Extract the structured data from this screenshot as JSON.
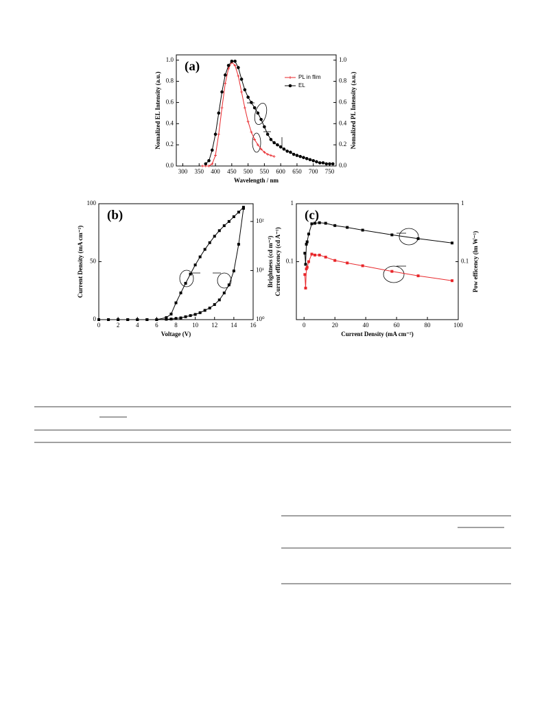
{
  "chart_data": [
    {
      "type": "line",
      "title": "(a)",
      "xlabel": "Wavelength / nm",
      "ylabel": "Nomalized EL Intensity (a.u.)",
      "y2label": "Nomalized PL Intensity (a.u.)",
      "xlim": [
        280,
        770
      ],
      "xticks": [
        300,
        350,
        400,
        450,
        500,
        550,
        600,
        650,
        700,
        750
      ],
      "ylim": [
        0,
        1.05
      ],
      "yticks": [
        {
          "value": 0,
          "label": "0.0"
        },
        0.2,
        0.4,
        0.6,
        0.8,
        {
          "value": 1,
          "label": "1.0"
        }
      ],
      "y2lim": [
        0,
        1.05
      ],
      "y2ticks": [
        {
          "value": 0,
          "label": "0.0"
        },
        0.2,
        0.4,
        0.6,
        0.8,
        {
          "value": 1,
          "label": "1.0"
        }
      ],
      "legend": "upper right",
      "series": [
        {
          "name": "PL in flim",
          "color": "#e8262a",
          "marker": "plus",
          "axis": "y2",
          "x": [
            360,
            370,
            380,
            390,
            400,
            410,
            420,
            430,
            440,
            450,
            460,
            470,
            480,
            490,
            500,
            510,
            520,
            530,
            540,
            550,
            560,
            570,
            580
          ],
          "values": [
            0,
            0,
            0,
            0.02,
            0.1,
            0.3,
            0.55,
            0.78,
            0.92,
            0.98,
            0.95,
            0.85,
            0.7,
            0.55,
            0.42,
            0.32,
            0.25,
            0.2,
            0.16,
            0.13,
            0.11,
            0.1,
            0.09
          ]
        },
        {
          "name": "EL",
          "color": "#000000",
          "marker": "circle",
          "x": [
            370,
            380,
            390,
            400,
            410,
            420,
            430,
            440,
            450,
            460,
            470,
            480,
            490,
            500,
            510,
            520,
            530,
            540,
            550,
            560,
            570,
            580,
            590,
            600,
            610,
            620,
            630,
            640,
            650,
            660,
            670,
            680,
            690,
            700,
            710,
            720,
            730,
            740,
            750,
            760
          ],
          "values": [
            0.02,
            0.05,
            0.15,
            0.3,
            0.5,
            0.7,
            0.86,
            0.95,
            0.99,
            0.99,
            0.93,
            0.82,
            0.72,
            0.65,
            0.6,
            0.55,
            0.5,
            0.44,
            0.37,
            0.3,
            0.25,
            0.22,
            0.2,
            0.18,
            0.16,
            0.14,
            0.13,
            0.11,
            0.1,
            0.09,
            0.08,
            0.07,
            0.06,
            0.05,
            0.04,
            0.03,
            0.03,
            0.02,
            0.02,
            0.02
          ]
        }
      ]
    },
    {
      "type": "line",
      "title": "(b)",
      "xlabel": "Voltage (V)",
      "ylabel": "Current Density (mA cm⁻²)",
      "y2label": "Brightness (cd m⁻²)",
      "xlim": [
        0,
        16
      ],
      "xticks": [
        0,
        2,
        4,
        6,
        8,
        10,
        12,
        14,
        16
      ],
      "ylim": [
        0,
        100
      ],
      "yticks": [
        0,
        50,
        100
      ],
      "y2lim": [
        1,
        230
      ],
      "y2log": true,
      "y2ticks": [
        {
          "value": 1,
          "label": "10⁰"
        },
        {
          "value": 10,
          "label": "10¹"
        },
        {
          "value": 100,
          "label": "10²"
        }
      ],
      "series": [
        {
          "color": "#000000",
          "marker": "square",
          "x": [
            0,
            1,
            2,
            3,
            4,
            5,
            6,
            7,
            7.5,
            8,
            8.5,
            9,
            9.5,
            10,
            10.5,
            11,
            11.5,
            12,
            12.5,
            13,
            13.5,
            14,
            14.5,
            15
          ],
          "values": [
            0,
            0,
            0,
            0,
            0,
            0,
            0,
            0.3,
            0.5,
            1,
            1.5,
            2.5,
            3.5,
            4.5,
            6,
            8,
            10,
            13,
            17,
            23,
            30,
            42,
            65,
            96
          ]
        },
        {
          "color": "#000000",
          "marker": "square",
          "axis": "y2",
          "x": [
            0,
            1,
            2,
            3,
            4,
            5,
            6,
            7,
            7.5,
            8,
            8.5,
            9,
            9.5,
            10,
            10.5,
            11,
            11.5,
            12,
            12.5,
            13,
            13.5,
            14,
            14.5,
            15
          ],
          "values": [
            1,
            1,
            1,
            1,
            1,
            1,
            1,
            1.1,
            1.3,
            2.2,
            3.5,
            5.5,
            8.5,
            13,
            19,
            27,
            37,
            50,
            65,
            82,
            100,
            125,
            155,
            195
          ]
        }
      ]
    },
    {
      "type": "line",
      "title": "(c)",
      "xlabel": "Current Density (mA cm⁻²)",
      "ylabel": "Current efficency (cd A⁻¹)",
      "y2label": "Pow efficency (lm W⁻¹)",
      "xlim": [
        -5,
        100
      ],
      "xticks": [
        0,
        20,
        40,
        60,
        80,
        100
      ],
      "ylim": [
        0.01,
        1
      ],
      "ylog": true,
      "yticks": [
        0.1,
        1
      ],
      "y2lim": [
        0.01,
        1
      ],
      "y2log": true,
      "y2ticks": [
        0.1,
        1
      ],
      "series": [
        {
          "color": "#000000",
          "marker": "square",
          "x": [
            0.5,
            1,
            1.5,
            2,
            3,
            5,
            7,
            10,
            14,
            20,
            28,
            38,
            57,
            74,
            96
          ],
          "values": [
            0.14,
            0.09,
            0.2,
            0.22,
            0.3,
            0.45,
            0.46,
            0.47,
            0.46,
            0.42,
            0.39,
            0.35,
            0.29,
            0.25,
            0.21
          ]
        },
        {
          "color": "#e8262a",
          "marker": "square",
          "axis": "y2",
          "x": [
            0.5,
            1,
            1.5,
            2,
            3,
            5,
            7,
            10,
            14,
            20,
            28,
            38,
            57,
            74,
            96
          ],
          "values": [
            0.06,
            0.035,
            0.075,
            0.08,
            0.1,
            0.135,
            0.13,
            0.13,
            0.12,
            0.105,
            0.095,
            0.085,
            0.068,
            0.057,
            0.047
          ]
        }
      ]
    }
  ]
}
